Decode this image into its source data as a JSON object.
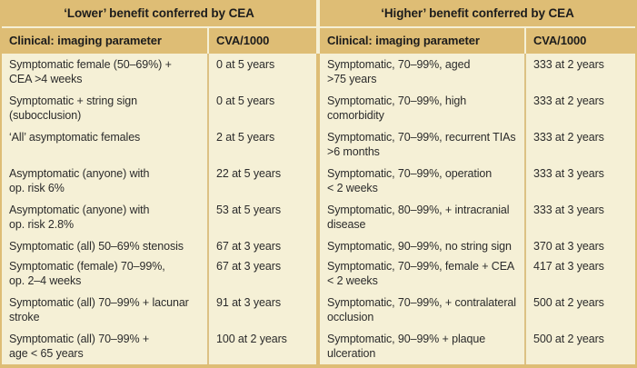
{
  "colors": {
    "band_tan": "#debd75",
    "body_cream": "#f5f0d6",
    "divider_tan": "#dcc184",
    "text": "#2b2b2b"
  },
  "sections": [
    {
      "title": "‘Lower’ benefit conferred by CEA",
      "param_header": "Clinical: imaging parameter",
      "cva_header": "CVA/1000",
      "rows": [
        {
          "param": [
            "Symptomatic female (50–69%) +",
            "CEA >4 weeks"
          ],
          "cva": "0 at 5 years"
        },
        {
          "param": [
            "Symptomatic + string sign",
            "(subocclusion)"
          ],
          "cva": "0 at 5 years"
        },
        {
          "param": [
            "‘All’ asymptomatic females"
          ],
          "cva": "2 at 5 years"
        },
        {
          "param": [
            "Asymptomatic (anyone) with",
            "op. risk 6%"
          ],
          "cva": "22 at 5 years"
        },
        {
          "param": [
            "Asymptomatic (anyone) with",
            "op. risk 2.8%"
          ],
          "cva": "53 at 5 years"
        },
        {
          "param": [
            "Symptomatic (all) 50–69% stenosis"
          ],
          "cva": "67 at 3 years"
        },
        {
          "param": [
            "Symptomatic (female) 70–99%,",
            "op. 2–4 weeks"
          ],
          "cva": "67 at 3 years"
        },
        {
          "param": [
            "Symptomatic (all) 70–99% + lacunar",
            "stroke"
          ],
          "cva": "91 at 3 years"
        },
        {
          "param": [
            "Symptomatic (all) 70–99% +",
            "age < 65 years"
          ],
          "cva": "100 at 2 years"
        }
      ]
    },
    {
      "title": "‘Higher’ benefit conferred by CEA",
      "param_header": "Clinical: imaging parameter",
      "cva_header": "CVA/1000",
      "rows": [
        {
          "param": [
            "Symptomatic, 70–99%, aged",
            ">75 years"
          ],
          "cva": "333 at 2 years"
        },
        {
          "param": [
            "Symptomatic, 70–99%, high",
            "comorbidity"
          ],
          "cva": "333 at 2 years"
        },
        {
          "param": [
            "Symptomatic, 70–99%, recurrent TIAs",
            ">6 months"
          ],
          "cva": "333 at 2 years"
        },
        {
          "param": [
            "Symptomatic, 70–99%, operation",
            "< 2 weeks"
          ],
          "cva": "333 at 3 years"
        },
        {
          "param": [
            "Symptomatic, 80–99%, + intracranial",
            "disease"
          ],
          "cva": "333 at 3 years"
        },
        {
          "param": [
            "Symptomatic, 90–99%, no string sign"
          ],
          "cva": "370 at 3 years"
        },
        {
          "param": [
            "Symptomatic, 70–99%, female + CEA",
            "< 2 weeks"
          ],
          "cva": "417 at 3 years"
        },
        {
          "param": [
            "Symptomatic, 70–99%, + contralateral",
            "occlusion"
          ],
          "cva": "500 at 2 years"
        },
        {
          "param": [
            "Symptomatic, 90–99% + plaque",
            "ulceration"
          ],
          "cva": "500 at 2 years"
        }
      ]
    }
  ]
}
